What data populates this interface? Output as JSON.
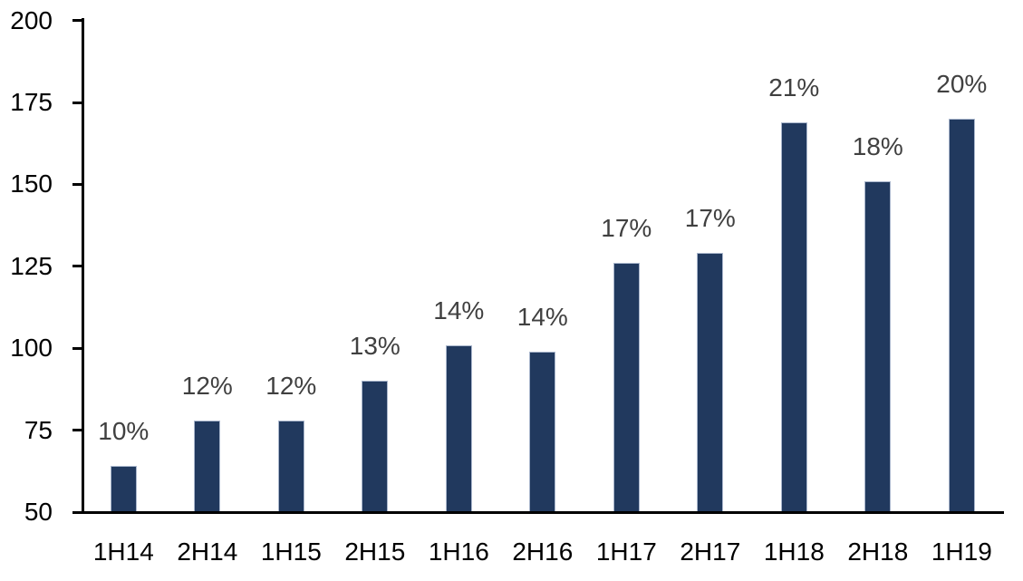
{
  "chart_data": {
    "type": "bar",
    "title": "",
    "xlabel": "",
    "ylabel": "",
    "categories": [
      "1H14",
      "2H14",
      "1H15",
      "2H15",
      "1H16",
      "2H16",
      "1H17",
      "2H17",
      "1H18",
      "2H18",
      "1H19"
    ],
    "values": [
      64,
      78,
      78,
      90,
      101,
      99,
      126,
      129,
      169,
      151,
      170
    ],
    "bar_labels": [
      "10%",
      "12%",
      "12%",
      "13%",
      "14%",
      "14%",
      "17%",
      "17%",
      "21%",
      "18%",
      "20%"
    ],
    "ylim": [
      50,
      200
    ],
    "yticks": [
      50,
      75,
      100,
      125,
      150,
      175,
      200
    ],
    "grid": false,
    "legend": false,
    "colors": {
      "bar_fill": "#21395E",
      "bar_border": "#A9B6CC",
      "bar_label_text": "#404040",
      "axis_text": "#000000",
      "axis_line": "#000000",
      "background": "#FFFFFF"
    }
  }
}
